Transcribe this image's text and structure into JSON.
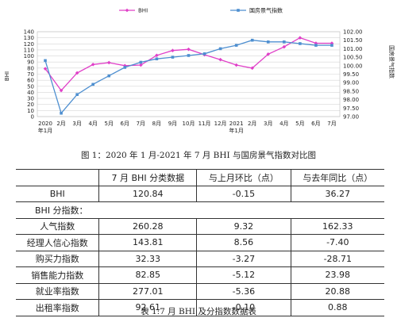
{
  "chart_data": {
    "type": "line",
    "categories": [
      "2020\n年1月",
      "2月",
      "3月",
      "4月",
      "5月",
      "6月",
      "7月",
      "8月",
      "9月",
      "10月",
      "11月",
      "12月",
      "2021\n年1月",
      "2月",
      "3月",
      "4月",
      "5月",
      "6月",
      "7月"
    ],
    "series": [
      {
        "name": "BHI",
        "axis": "left",
        "color": "#e040c8",
        "values": [
          79,
          43,
          72,
          86,
          89,
          84,
          85,
          101,
          109,
          111,
          102,
          94,
          85,
          80,
          103,
          115,
          130,
          121,
          121
        ]
      },
      {
        "name": "国房景气指数",
        "axis": "right",
        "color": "#4e8fd0",
        "values": [
          100.3,
          97.2,
          98.3,
          98.9,
          99.4,
          99.9,
          100.2,
          100.4,
          100.5,
          100.6,
          100.7,
          101.0,
          101.2,
          101.5,
          101.4,
          101.4,
          101.3,
          101.2,
          101.2
        ]
      }
    ],
    "y_left": {
      "label": "BHI",
      "ticks": [
        0,
        10,
        20,
        30,
        40,
        50,
        60,
        70,
        80,
        90,
        100,
        110,
        120,
        130,
        140
      ],
      "range": [
        0,
        140
      ]
    },
    "y_right": {
      "label": "国房景气指数",
      "ticks": [
        "97.00",
        "97.50",
        "98.00",
        "98.50",
        "99.00",
        "99.50",
        "100.00",
        "100.50",
        "101.00",
        "101.50",
        "102.00"
      ],
      "range": [
        97,
        102
      ]
    },
    "legend_placement": "top",
    "grid": true
  },
  "figure_caption": "图 1：2020 年 1 月-2021 年 7 月 BHI 与国房景气指数对比图",
  "table": {
    "headers": [
      "",
      "7 月 BHI 分类数据",
      "与上月环比（点）",
      "与去年同比（点）"
    ],
    "bhi_row": {
      "name": "BHI",
      "value": "120.84",
      "mom": "-0.15",
      "yoy": "36.27"
    },
    "section_label": "BHI 分指数：",
    "rows": [
      {
        "name": "人气指数",
        "value": "260.28",
        "mom": "9.32",
        "yoy": "162.33"
      },
      {
        "name": "经理人信心指数",
        "value": "143.81",
        "mom": "8.56",
        "yoy": "-7.40"
      },
      {
        "name": "购买力指数",
        "value": "32.33",
        "mom": "-3.27",
        "yoy": "-28.71"
      },
      {
        "name": "销售能力指数",
        "value": "82.85",
        "mom": "-5.12",
        "yoy": "23.98"
      },
      {
        "name": "就业率指数",
        "value": "277.01",
        "mom": "-5.36",
        "yoy": "20.88"
      },
      {
        "name": "出租率指数",
        "value": "92.61",
        "mom": "-0.10",
        "yoy": "0.88"
      }
    ]
  },
  "table_caption": "表 1:7 月 BHI 及分指数数据表"
}
